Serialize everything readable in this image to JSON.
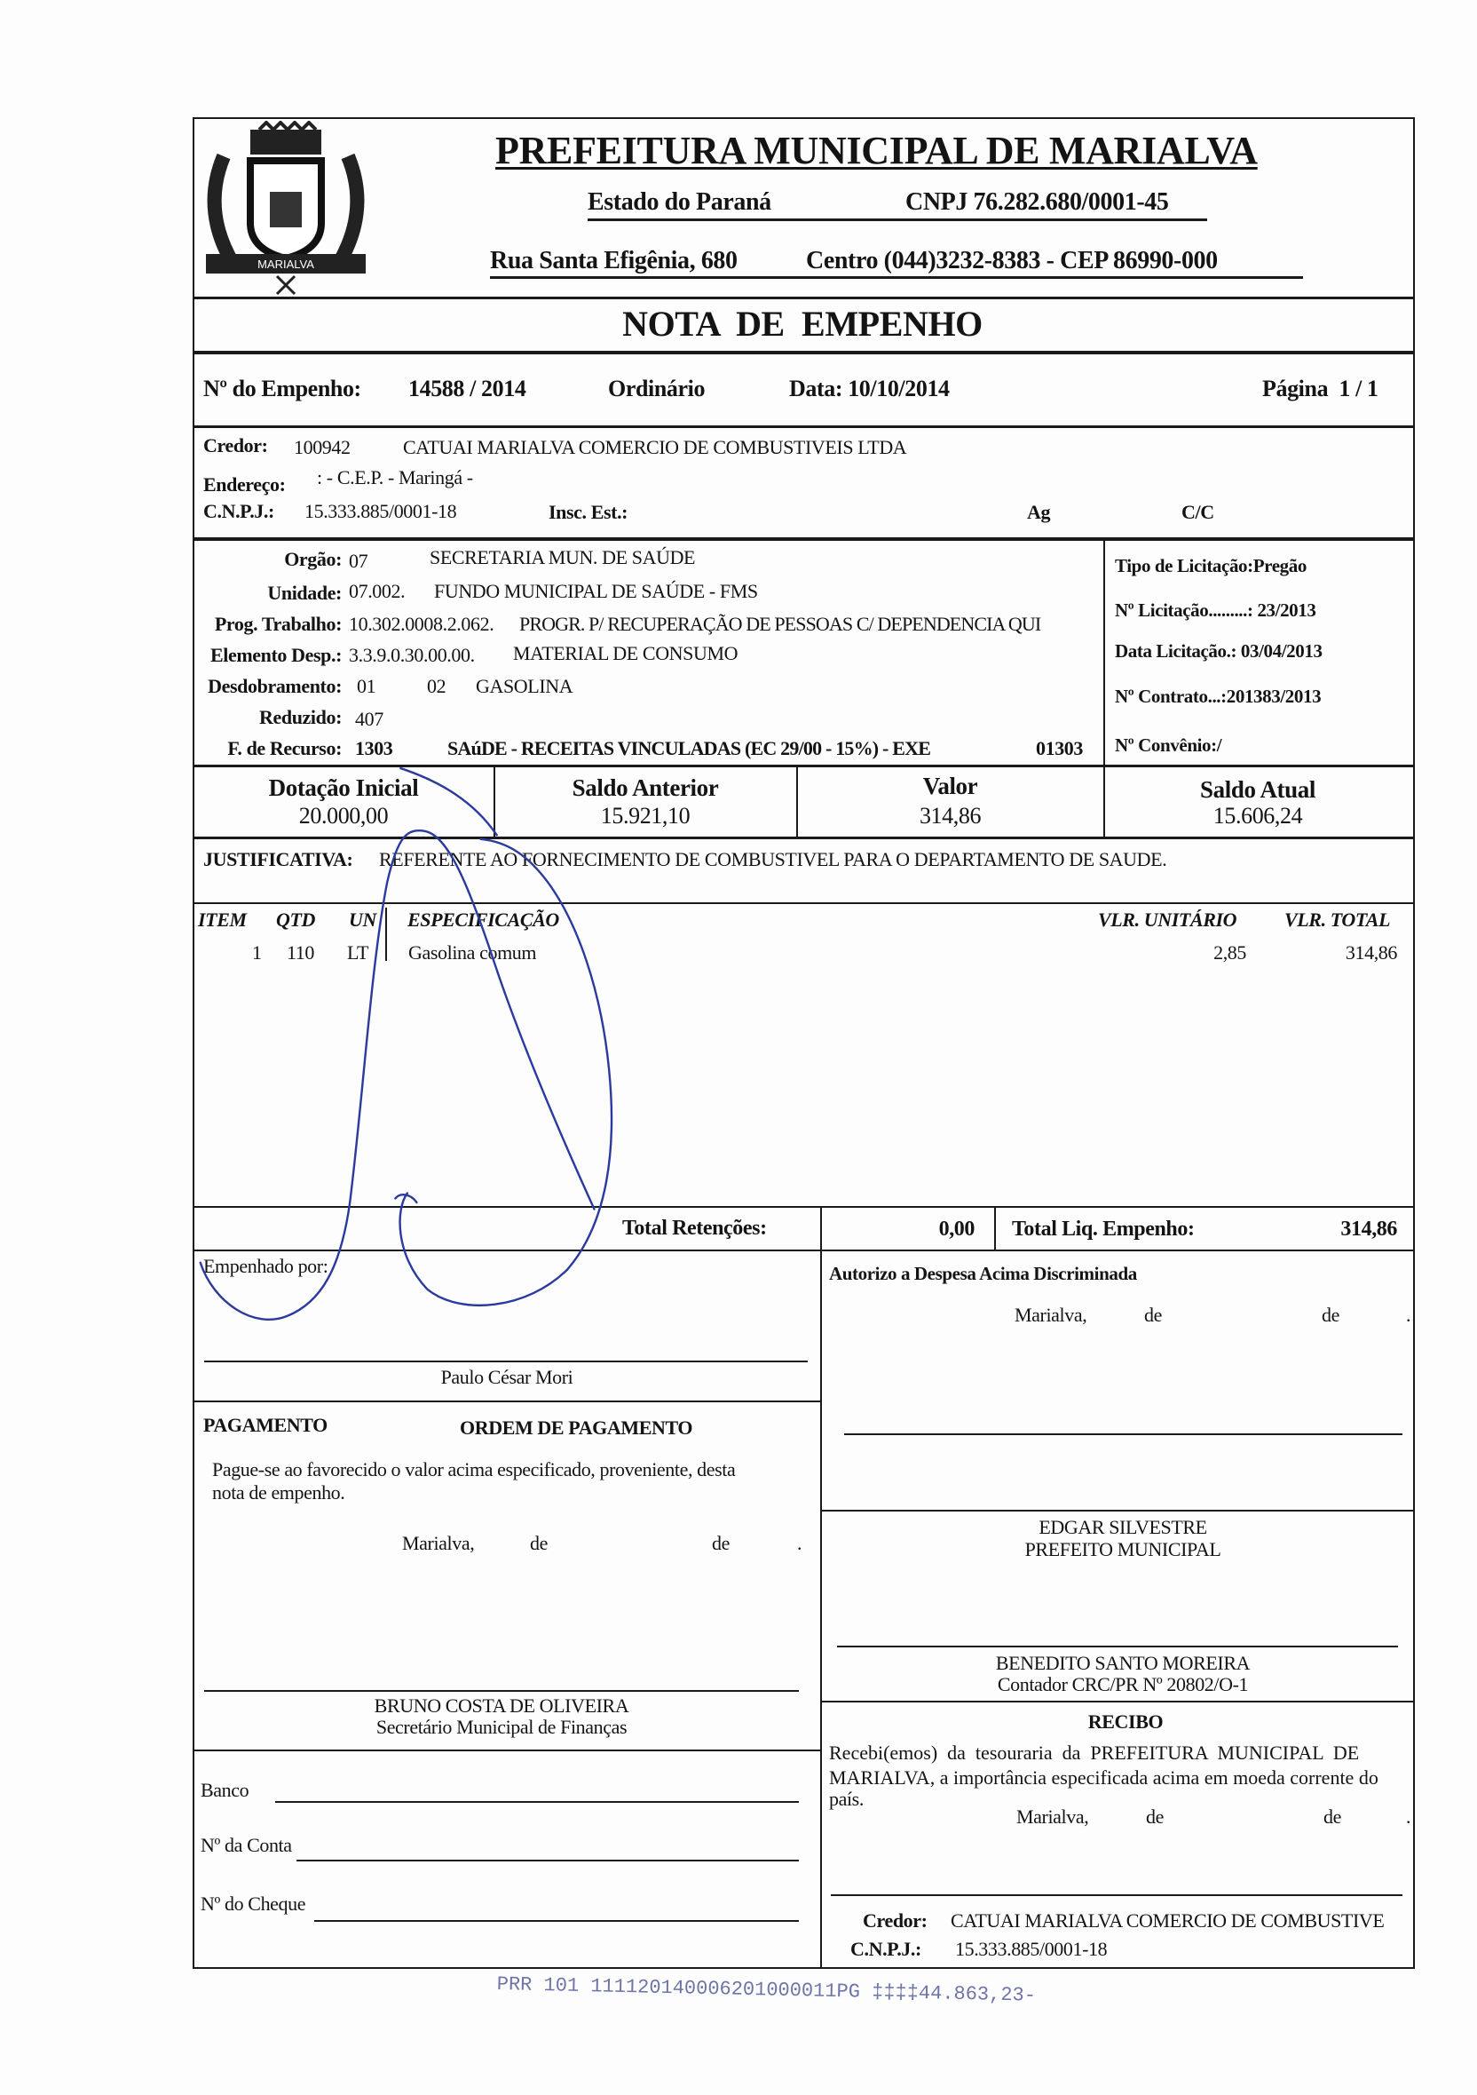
{
  "header": {
    "title": "PREFEITURA MUNICIPAL DE MARIALVA",
    "state": "Estado do Paraná",
    "cnpj": "CNPJ 76.282.680/0001-45",
    "address": "Rua Santa Efigênia, 680",
    "district_phone": "Centro  (044)3232-8383  -  CEP 86990-000",
    "logo_text": "MARIALVA",
    "doc_title": "NOTA  DE  EMPENHO"
  },
  "empenho": {
    "number_label": "Nº do Empenho:",
    "number": "14588 / 2014",
    "type": "Ordinário",
    "date": "Data: 10/10/2014",
    "page": "Página  1 / 1"
  },
  "credor": {
    "label": "Credor:",
    "code": "100942",
    "name": "CATUAI MARIALVA COMERCIO DE COMBUSTIVEIS LTDA",
    "address_label": "Endereço:",
    "address": ": - C.E.P.  - Maringá -",
    "cnpj_label": "C.N.P.J.:",
    "cnpj": "15.333.885/0001-18",
    "insc_label": "Insc. Est.:",
    "ag_label": "Ag",
    "cc_label": "C/C"
  },
  "dotacao": {
    "orgao_label": "Orgão:",
    "orgao_code": "07",
    "orgao_name": "SECRETARIA MUN. DE SAÚDE",
    "unidade_label": "Unidade:",
    "unidade_code": "07.002.",
    "unidade_name": "FUNDO MUNICIPAL DE SAÚDE - FMS",
    "prog_label": "Prog. Trabalho:",
    "prog_code": "10.302.0008.2.062.",
    "prog_name": "PROGR. P/ RECUPERAÇÃO DE PESSOAS C/ DEPENDENCIA QUI",
    "elemento_label": "Elemento Desp.:",
    "elemento_code": "3.3.9.0.30.00.00.",
    "elemento_name": "MATERIAL DE CONSUMO",
    "desdobramento_label": "Desdobramento:",
    "desd_1": "01",
    "desd_2": "02",
    "desd_name": "GASOLINA",
    "reduzido_label": "Reduzido:",
    "reduzido": "407",
    "recurso_label": "F. de Recurso:",
    "recurso_code": "1303",
    "recurso_name": "SAúDE - RECEITAS VINCULADAS (EC 29/00 - 15%) - EXE",
    "recurso_code2": "01303"
  },
  "licitacao": {
    "tipo": "Tipo de Licitação:Pregão",
    "numero": "Nº Licitação.........: 23/2013",
    "data": "Data Licitação.: 03/04/2013",
    "contrato": "Nº Contrato...:201383/2013",
    "convenio": "Nº Convênio:/"
  },
  "saldos": [
    {
      "label": "Dotação Inicial",
      "value": "20.000,00"
    },
    {
      "label": "Saldo Anterior",
      "value": "15.921,10"
    },
    {
      "label": "Valor",
      "value": "314,86"
    },
    {
      "label": "Saldo Atual",
      "value": "15.606,24"
    }
  ],
  "justificativa": {
    "label": "JUSTIFICATIVA:",
    "text": "REFERENTE AO FORNECIMENTO DE COMBUSTIVEL PARA O DEPARTAMENTO DE SAUDE."
  },
  "items": {
    "headers": {
      "item": "ITEM",
      "qtd": "QTD",
      "un": "UN",
      "spec": "ESPECIFICAÇÃO",
      "unit": "VLR. UNITÁRIO",
      "total": "VLR. TOTAL"
    },
    "rows": [
      {
        "item": "1",
        "qtd": "110",
        "un": "LT",
        "spec": "Gasolina comum",
        "unit": "2,85",
        "total": "314,86"
      }
    ]
  },
  "totals": {
    "retencoes_label": "Total Retenções:",
    "retencoes": "0,00",
    "liq_label": "Total Liq. Empenho:",
    "liq": "314,86"
  },
  "empenhado": {
    "label": "Empenhado por:",
    "name": "Paulo César Mori"
  },
  "autorizo": {
    "label": "Autorizo a Despesa Acima Discriminada",
    "city": "Marialva,",
    "de1": "de",
    "de2": "de",
    "dot": "."
  },
  "pagamento": {
    "label": "PAGAMENTO",
    "title": "ORDEM DE PAGAMENTO",
    "text1": "Pague-se ao favorecido o valor acima especificado, proveniente, desta",
    "text2": "nota de empenho.",
    "city": "Marialva,",
    "de1": "de",
    "de2": "de",
    "dot": "."
  },
  "prefeito": {
    "name": "EDGAR SILVESTRE",
    "role": "PREFEITO MUNICIPAL"
  },
  "contador": {
    "name": "BENEDITO SANTO MOREIRA",
    "role": "Contador CRC/PR Nº 20802/O-1"
  },
  "secretario": {
    "name": "BRUNO COSTA DE OLIVEIRA",
    "role": "Secretário Municipal de Finanças"
  },
  "recibo": {
    "title": "RECIBO",
    "text1": "Recebi(emos)  da  tesouraria  da  PREFEITURA  MUNICIPAL  DE",
    "text2": "MARIALVA, a importância especificada acima em moeda corrente do",
    "text3": "país.",
    "city": "Marialva,",
    "de1": "de",
    "de2": "de",
    "dot": ".",
    "credor_label": "Credor:",
    "credor_name": "CATUAI MARIALVA COMERCIO DE COMBUSTIVE",
    "cnpj_label": "C.N.P.J.:",
    "cnpj": "15.333.885/0001-18"
  },
  "banco": {
    "banco_label": "Banco",
    "conta_label": "Nº da Conta",
    "cheque_label": "Nº do Cheque"
  },
  "stamp": "PRR 101 111120140006201000011PG ‡‡‡‡44.863,23-",
  "colors": {
    "ink": "#141414",
    "signature": "#2b3a9e",
    "stamp": "#6d74a8"
  }
}
